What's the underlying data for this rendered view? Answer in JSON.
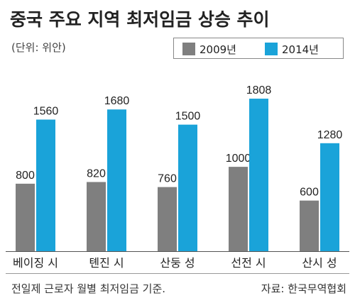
{
  "chart_data": {
    "type": "bar",
    "title": "중국 주요 지역 최저임금 상승 추이",
    "unit_note": "(단위: 위안)",
    "categories": [
      "베이징 시",
      "톈진 시",
      "산둥 성",
      "선전 시",
      "산시 성"
    ],
    "series": [
      {
        "name": "2009년",
        "values": [
          800,
          820,
          760,
          1000,
          600
        ],
        "color": "#7f7f7f"
      },
      {
        "name": "2014년",
        "values": [
          1560,
          1680,
          1500,
          1808,
          1280
        ],
        "color": "#1aa3d9"
      }
    ],
    "ylim": [
      0,
      2000
    ],
    "grid": false,
    "legend_position": "top-right",
    "footnote": "전일제 근로자 월별 최저임금 기준.",
    "source": "자료: 한국무역협회"
  }
}
